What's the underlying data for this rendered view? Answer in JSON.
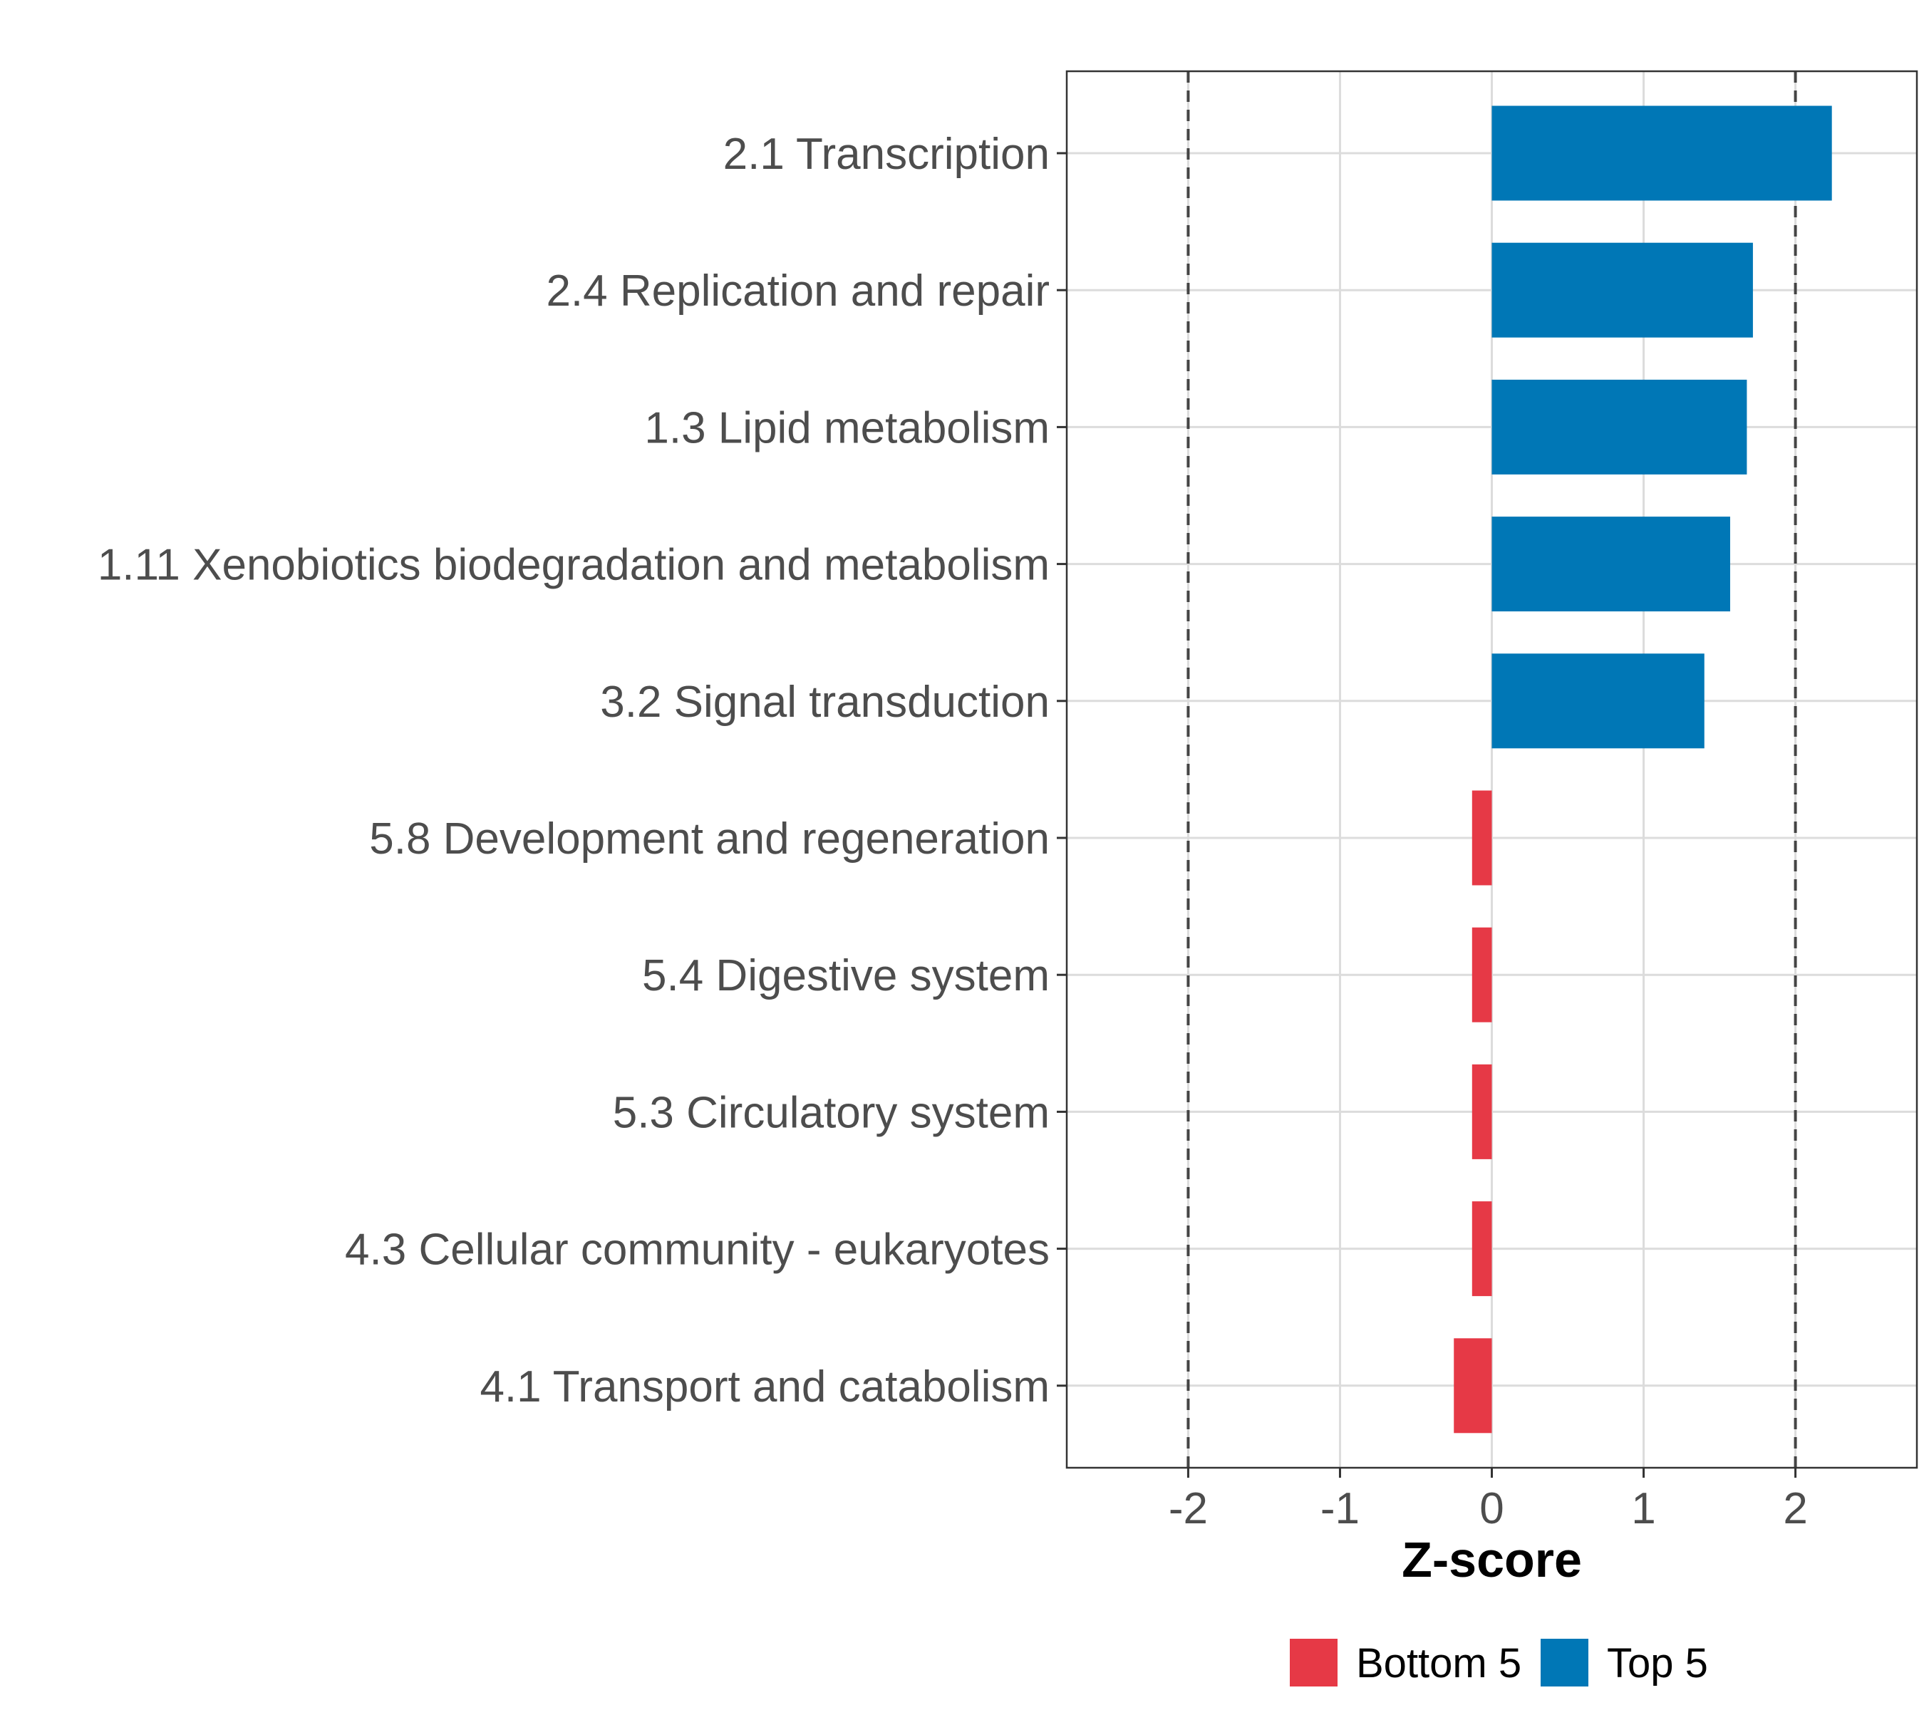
{
  "chart_data": {
    "type": "bar",
    "orientation": "horizontal",
    "title": "",
    "xlabel": "Z-score",
    "ylabel": "",
    "xlim": [
      -2.8,
      2.8
    ],
    "xticks": [
      -2,
      -1,
      0,
      1,
      2
    ],
    "xtick_labels": [
      "-2",
      "-1",
      "0",
      "1",
      "2"
    ],
    "reference_lines": [
      -2,
      2
    ],
    "grid": true,
    "categories": [
      "2.1 Transcription",
      "2.4 Replication and repair",
      "1.3 Lipid metabolism",
      "1.11 Xenobiotics biodegradation and metabolism",
      "3.2 Signal transduction",
      "5.8 Development and regeneration",
      "5.4 Digestive system",
      "5.3 Circulatory system",
      "4.3 Cellular community - eukaryotes",
      "4.1 Transport and catabolism"
    ],
    "values": [
      2.24,
      1.72,
      1.68,
      1.57,
      1.4,
      -0.13,
      -0.13,
      -0.13,
      -0.13,
      -0.25
    ],
    "groups": [
      "Top 5",
      "Top 5",
      "Top 5",
      "Top 5",
      "Top 5",
      "Bottom 5",
      "Bottom 5",
      "Bottom 5",
      "Bottom 5",
      "Bottom 5"
    ],
    "legend": [
      {
        "name": "Bottom 5",
        "color": "#e63946"
      },
      {
        "name": "Top 5",
        "color": "#0077b6"
      }
    ],
    "legend_position": "bottom"
  }
}
